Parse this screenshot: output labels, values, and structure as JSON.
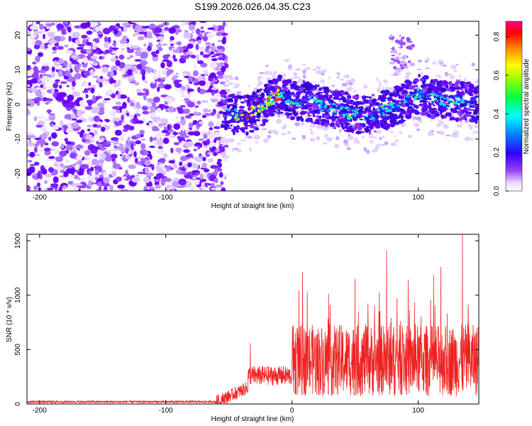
{
  "title": "S199.2026.026.04.35.C23",
  "chart_data": [
    {
      "type": "heatmap",
      "xlabel": "Height of straight line (km)",
      "ylabel": "Frequency (Hz)",
      "xlim": [
        -210,
        148
      ],
      "ylim": [
        -25,
        24
      ],
      "xticks": [
        -200,
        -100,
        0,
        100
      ],
      "xtick_labels": [
        "-200",
        "-100",
        "0",
        "100"
      ],
      "yticks": [
        20,
        10,
        0,
        -10,
        -20
      ],
      "ytick_labels": [
        "20",
        "10",
        "0",
        "-10",
        "-20"
      ],
      "colorbar": {
        "label": "Normalized spectral amplitude",
        "range": [
          0,
          0.88
        ],
        "ticks": [
          0.0,
          0.2,
          0.4,
          0.6,
          0.8
        ],
        "tick_labels": [
          "0.0",
          "0.2",
          "0.4",
          "0.6",
          "0.8"
        ]
      },
      "ridge": {
        "x": [
          -55,
          -45,
          -35,
          -25,
          -15,
          -10,
          0,
          10,
          20,
          30,
          40,
          50,
          60,
          70,
          80,
          90,
          100,
          110,
          120,
          130,
          140,
          148
        ],
        "freq": [
          -1,
          -3,
          -3,
          -1,
          2,
          3,
          1,
          1,
          0,
          -1,
          -2,
          -3,
          -3,
          -2,
          -1,
          1,
          3,
          2,
          1,
          1,
          1,
          0
        ]
      }
    },
    {
      "type": "line",
      "xlabel": "Height of straight line (km)",
      "ylabel": "SNR (10 * v/v)",
      "xlim": [
        -210,
        148
      ],
      "ylim": [
        0,
        1560
      ],
      "xticks": [
        -200,
        -100,
        0,
        100
      ],
      "xtick_labels": [
        "-200",
        "-100",
        "0",
        "100"
      ],
      "yticks": [
        0,
        500,
        1000,
        1500
      ],
      "ytick_labels": [
        "0",
        "500",
        "1000",
        "1500"
      ],
      "series": [
        {
          "name": "SNR",
          "color": "#ee2222",
          "segments": [
            {
              "x": [
                -210,
                -60
              ],
              "baseline": 20,
              "noise": 10
            },
            {
              "x": [
                -60,
                -35
              ],
              "start": 20,
              "end": 150,
              "noise": 60
            },
            {
              "x": [
                -35,
                0
              ],
              "baseline": 260,
              "noise": 90
            },
            {
              "x": [
                0,
                148
              ],
              "baseline": 400,
              "noise": 330
            }
          ],
          "peaks": [
            {
              "x": -33,
              "y": 560
            },
            {
              "x": 50,
              "y": 1150
            },
            {
              "x": 75,
              "y": 1410
            },
            {
              "x": 118,
              "y": 1260
            },
            {
              "x": 135,
              "y": 1560
            }
          ]
        }
      ]
    }
  ]
}
